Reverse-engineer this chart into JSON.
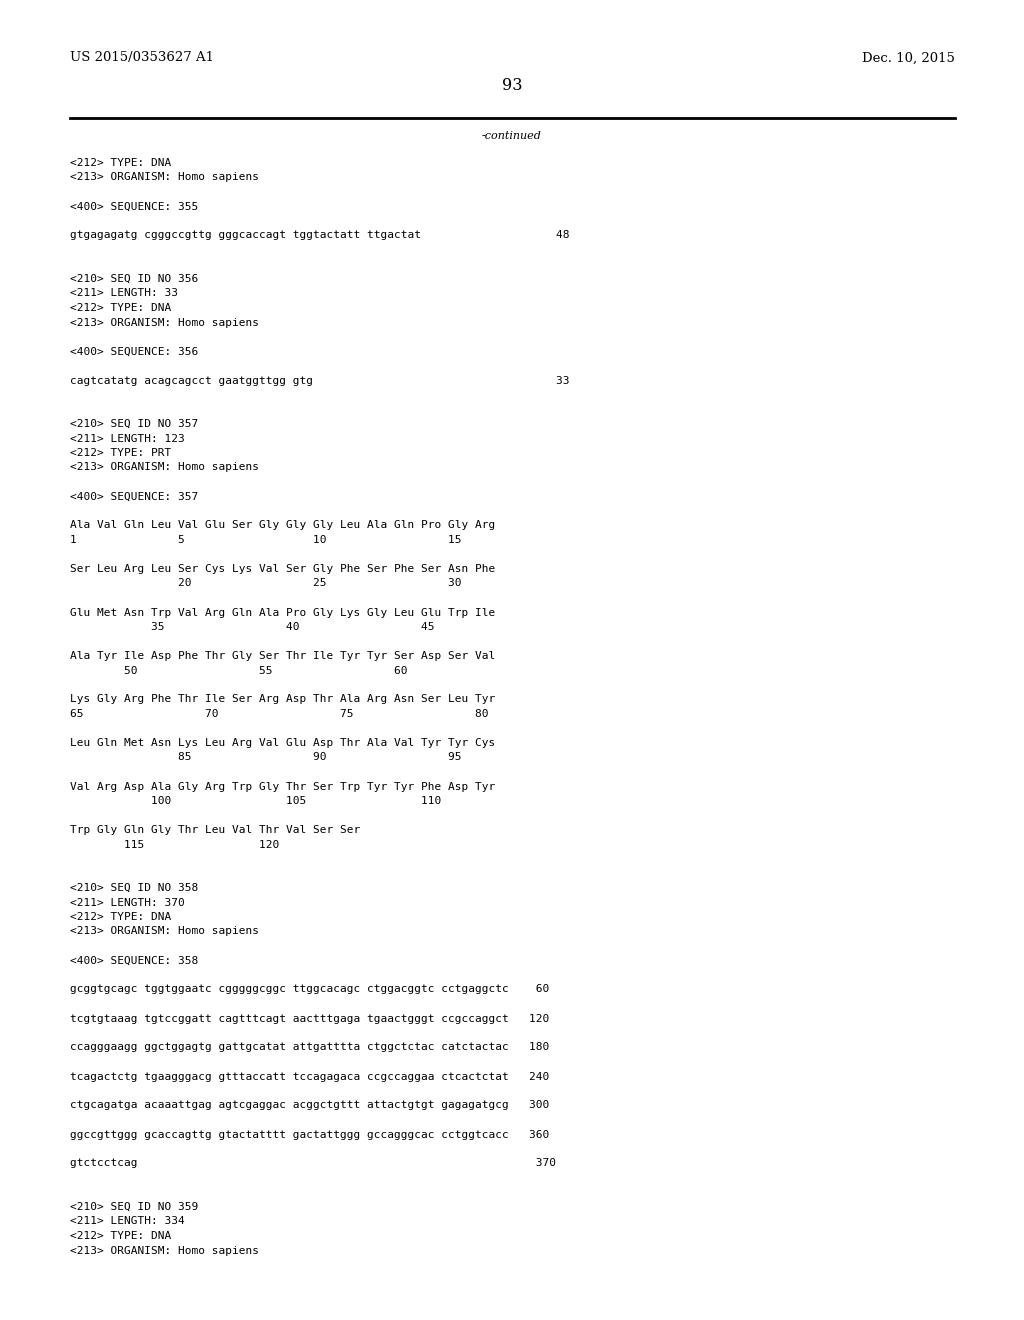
{
  "background_color": "#ffffff",
  "header_left": "US 2015/0353627 A1",
  "header_right": "Dec. 10, 2015",
  "page_number": "93",
  "continued_label": "-continued",
  "content_font_size": 8.0,
  "header_font_size": 9.5,
  "page_num_font_size": 11.5,
  "content": [
    "<212> TYPE: DNA",
    "<213> ORGANISM: Homo sapiens",
    "",
    "<400> SEQUENCE: 355",
    "",
    "gtgagagatg cgggccgttg gggcaccagt tggtactatt ttgactat                    48",
    "",
    "",
    "<210> SEQ ID NO 356",
    "<211> LENGTH: 33",
    "<212> TYPE: DNA",
    "<213> ORGANISM: Homo sapiens",
    "",
    "<400> SEQUENCE: 356",
    "",
    "cagtcatatg acagcagcct gaatggttgg gtg                                    33",
    "",
    "",
    "<210> SEQ ID NO 357",
    "<211> LENGTH: 123",
    "<212> TYPE: PRT",
    "<213> ORGANISM: Homo sapiens",
    "",
    "<400> SEQUENCE: 357",
    "",
    "Ala Val Gln Leu Val Glu Ser Gly Gly Gly Leu Ala Gln Pro Gly Arg",
    "1               5                   10                  15",
    "",
    "Ser Leu Arg Leu Ser Cys Lys Val Ser Gly Phe Ser Phe Ser Asn Phe",
    "                20                  25                  30",
    "",
    "Glu Met Asn Trp Val Arg Gln Ala Pro Gly Lys Gly Leu Glu Trp Ile",
    "            35                  40                  45",
    "",
    "Ala Tyr Ile Asp Phe Thr Gly Ser Thr Ile Tyr Tyr Ser Asp Ser Val",
    "        50                  55                  60",
    "",
    "Lys Gly Arg Phe Thr Ile Ser Arg Asp Thr Ala Arg Asn Ser Leu Tyr",
    "65                  70                  75                  80",
    "",
    "Leu Gln Met Asn Lys Leu Arg Val Glu Asp Thr Ala Val Tyr Tyr Cys",
    "                85                  90                  95",
    "",
    "Val Arg Asp Ala Gly Arg Trp Gly Thr Ser Trp Tyr Tyr Phe Asp Tyr",
    "            100                 105                 110",
    "",
    "Trp Gly Gln Gly Thr Leu Val Thr Val Ser Ser",
    "        115                 120",
    "",
    "",
    "<210> SEQ ID NO 358",
    "<211> LENGTH: 370",
    "<212> TYPE: DNA",
    "<213> ORGANISM: Homo sapiens",
    "",
    "<400> SEQUENCE: 358",
    "",
    "gcggtgcagc tggtggaatc cgggggcggc ttggcacagc ctggacggtc cctgaggctc    60",
    "",
    "tcgtgtaaag tgtccggatt cagtttcagt aactttgaga tgaactgggt ccgccaggct   120",
    "",
    "ccagggaagg ggctggagtg gattgcatat attgatttta ctggctctac catctactac   180",
    "",
    "tcagactctg tgaagggacg gtttaccatt tccagagaca ccgccaggaa ctcactctat   240",
    "",
    "ctgcagatga acaaattgag agtcgaggac acggctgttt attactgtgt gagagatgcg   300",
    "",
    "ggccgttggg gcaccagttg gtactatttt gactattggg gccagggcac cctggtcacc   360",
    "",
    "gtctcctcag                                                           370",
    "",
    "",
    "<210> SEQ ID NO 359",
    "<211> LENGTH: 334",
    "<212> TYPE: DNA",
    "<213> ORGANISM: Homo sapiens"
  ]
}
